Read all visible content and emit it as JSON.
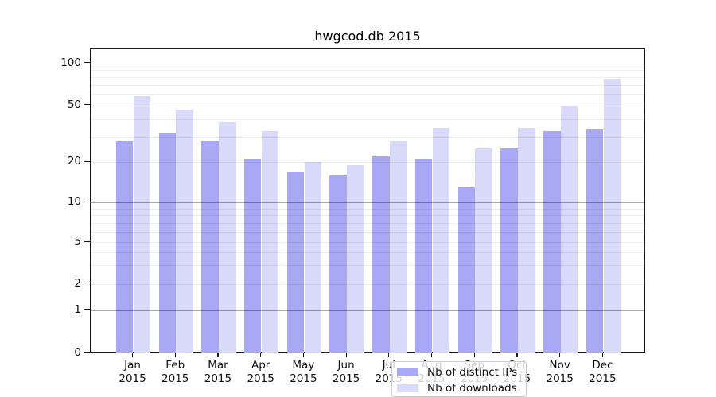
{
  "title": "hwgcod.db 2015",
  "chart_data": {
    "type": "bar",
    "categories": [
      "Jan",
      "Feb",
      "Mar",
      "Apr",
      "May",
      "Jun",
      "Jul",
      "Aug",
      "Sep",
      "Oct",
      "Nov",
      "Dec"
    ],
    "category_year": "2015",
    "series": [
      {
        "name": "Nb of distinct IPs",
        "color": "#a8a8f5",
        "values": [
          28,
          32,
          28,
          21,
          17,
          16,
          22,
          21,
          13,
          25,
          33,
          34
        ]
      },
      {
        "name": "Nb of downloads",
        "color": "#d9d9f9",
        "values": [
          58,
          47,
          38,
          33,
          20,
          19,
          28,
          35,
          25,
          35,
          49,
          77
        ]
      }
    ],
    "xlabel": "",
    "ylabel": "",
    "yscale": "symlog",
    "yticks": [
      0,
      1,
      2,
      5,
      10,
      20,
      50,
      100
    ],
    "ylim": [
      0,
      110
    ],
    "grid": "on",
    "legend_position": "lower center"
  }
}
